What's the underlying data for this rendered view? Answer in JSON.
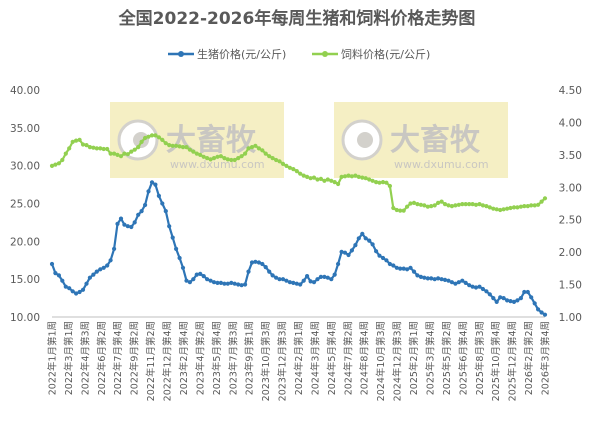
{
  "chart_data": {
    "type": "line",
    "title": "全国2022-2026年每周生猪和饲料价格走势图",
    "legend_position": "top",
    "grid": false,
    "y_left": {
      "ticks": [
        "40.00",
        "35.00",
        "30.00",
        "25.00",
        "20.00",
        "15.00",
        "10.00"
      ],
      "range": [
        10,
        40
      ]
    },
    "y_right": {
      "ticks": [
        "4.50",
        "4.00",
        "3.50",
        "3.00",
        "2.50",
        "2.00",
        "1.50",
        "1.00"
      ],
      "range": [
        1.0,
        4.5
      ]
    },
    "x_ticks": [
      "2022年1月第1周",
      "2022年3月第1周",
      "2022年4月第3周",
      "2022年6月第2周",
      "2022年7月第4周",
      "2022年9月第2周",
      "2022年11月第2周",
      "2022年12月第4周",
      "2023年2月第4周",
      "2023年4月第2周",
      "2023年5月第4周",
      "2023年7月第3周",
      "2023年9月第1周",
      "2023年10月第3周",
      "2023年12月第3周",
      "2024年2月第1周",
      "2024年3月第4周",
      "2024年5月第4周",
      "2024年7月第2周",
      "2024年8月第4周",
      "2024年10月第3周",
      "2024年12月第3周",
      "2025年2月第1周",
      "2025年3月第4周",
      "2025年5月第2周",
      "2025年6月第4周",
      "2025年8月第3周",
      "2025年10月第4周",
      "2025年12月第4周",
      "2026年2月第2周",
      "2026年3月第4周"
    ],
    "series": [
      {
        "name": "生猪价格(元/公斤)",
        "axis": "left",
        "color": "#2e75b6",
        "points": [
          [
            0,
            17.0
          ],
          [
            1,
            15.8
          ],
          [
            2,
            15.5
          ],
          [
            3,
            14.8
          ],
          [
            4,
            14.0
          ],
          [
            5,
            13.8
          ],
          [
            6,
            13.4
          ],
          [
            7,
            13.1
          ],
          [
            8,
            13.3
          ],
          [
            9,
            13.6
          ],
          [
            10,
            14.4
          ],
          [
            11,
            15.2
          ],
          [
            12,
            15.6
          ],
          [
            13,
            16.0
          ],
          [
            14,
            16.3
          ],
          [
            15,
            16.5
          ],
          [
            16,
            16.8
          ],
          [
            17,
            17.5
          ],
          [
            18,
            19.0
          ],
          [
            19,
            22.3
          ],
          [
            20,
            23.0
          ],
          [
            21,
            22.2
          ],
          [
            22,
            22.0
          ],
          [
            23,
            21.9
          ],
          [
            24,
            22.5
          ],
          [
            25,
            23.5
          ],
          [
            26,
            24.0
          ],
          [
            27,
            24.8
          ],
          [
            28,
            26.6
          ],
          [
            29,
            27.8
          ],
          [
            30,
            27.5
          ],
          [
            31,
            26.0
          ],
          [
            32,
            25.0
          ],
          [
            33,
            24.0
          ],
          [
            34,
            22.0
          ],
          [
            35,
            20.5
          ],
          [
            36,
            19.0
          ],
          [
            37,
            17.8
          ],
          [
            38,
            16.5
          ],
          [
            39,
            14.8
          ],
          [
            40,
            14.6
          ],
          [
            41,
            15.0
          ],
          [
            42,
            15.6
          ],
          [
            43,
            15.7
          ],
          [
            44,
            15.4
          ],
          [
            45,
            15.0
          ],
          [
            46,
            14.8
          ],
          [
            47,
            14.6
          ],
          [
            48,
            14.5
          ],
          [
            49,
            14.5
          ],
          [
            50,
            14.4
          ],
          [
            51,
            14.4
          ],
          [
            52,
            14.5
          ],
          [
            53,
            14.4
          ],
          [
            54,
            14.3
          ],
          [
            55,
            14.2
          ],
          [
            56,
            14.3
          ],
          [
            57,
            16.0
          ],
          [
            58,
            17.2
          ],
          [
            59,
            17.3
          ],
          [
            60,
            17.2
          ],
          [
            61,
            17.0
          ],
          [
            62,
            16.6
          ],
          [
            63,
            16.0
          ],
          [
            64,
            15.5
          ],
          [
            65,
            15.2
          ],
          [
            66,
            15.0
          ],
          [
            67,
            15.0
          ],
          [
            68,
            14.8
          ],
          [
            69,
            14.6
          ],
          [
            70,
            14.5
          ],
          [
            71,
            14.4
          ],
          [
            72,
            14.3
          ],
          [
            73,
            14.8
          ],
          [
            74,
            15.4
          ],
          [
            75,
            14.7
          ],
          [
            76,
            14.6
          ],
          [
            77,
            15.0
          ],
          [
            78,
            15.3
          ],
          [
            79,
            15.3
          ],
          [
            80,
            15.2
          ],
          [
            81,
            15.0
          ],
          [
            82,
            15.6
          ],
          [
            83,
            17.0
          ],
          [
            84,
            18.6
          ],
          [
            85,
            18.5
          ],
          [
            86,
            18.2
          ],
          [
            87,
            18.8
          ],
          [
            88,
            19.5
          ],
          [
            89,
            20.4
          ],
          [
            90,
            21.0
          ],
          [
            91,
            20.4
          ],
          [
            92,
            20.1
          ],
          [
            93,
            19.6
          ],
          [
            94,
            18.7
          ],
          [
            95,
            18.1
          ],
          [
            96,
            17.8
          ],
          [
            97,
            17.5
          ],
          [
            98,
            17.0
          ],
          [
            99,
            16.8
          ],
          [
            100,
            16.5
          ],
          [
            101,
            16.4
          ],
          [
            102,
            16.4
          ],
          [
            103,
            16.3
          ],
          [
            104,
            16.5
          ],
          [
            105,
            16.0
          ],
          [
            106,
            15.5
          ],
          [
            107,
            15.3
          ],
          [
            108,
            15.2
          ],
          [
            109,
            15.1
          ],
          [
            110,
            15.1
          ],
          [
            111,
            15.0
          ],
          [
            112,
            15.1
          ],
          [
            113,
            15.0
          ],
          [
            114,
            14.9
          ],
          [
            115,
            14.8
          ],
          [
            116,
            14.6
          ],
          [
            117,
            14.4
          ],
          [
            118,
            14.6
          ],
          [
            119,
            14.8
          ],
          [
            120,
            14.5
          ],
          [
            121,
            14.2
          ],
          [
            122,
            14.0
          ],
          [
            123,
            13.9
          ],
          [
            124,
            14.0
          ],
          [
            125,
            13.7
          ],
          [
            126,
            13.4
          ],
          [
            127,
            13.0
          ],
          [
            128,
            12.5
          ],
          [
            129,
            12.0
          ],
          [
            130,
            12.6
          ],
          [
            131,
            12.5
          ],
          [
            132,
            12.2
          ],
          [
            133,
            12.1
          ],
          [
            134,
            12.0
          ],
          [
            135,
            12.2
          ],
          [
            136,
            12.5
          ],
          [
            137,
            13.3
          ],
          [
            138,
            13.3
          ],
          [
            139,
            12.6
          ],
          [
            140,
            11.8
          ],
          [
            141,
            11.0
          ],
          [
            142,
            10.6
          ],
          [
            143,
            10.3
          ]
        ]
      },
      {
        "name": "饲料价格(元/公斤)",
        "axis": "right",
        "color": "#92d050",
        "points": [
          [
            0,
            3.33
          ],
          [
            1,
            3.35
          ],
          [
            2,
            3.37
          ],
          [
            3,
            3.42
          ],
          [
            4,
            3.52
          ],
          [
            5,
            3.6
          ],
          [
            6,
            3.7
          ],
          [
            7,
            3.72
          ],
          [
            8,
            3.73
          ],
          [
            9,
            3.66
          ],
          [
            10,
            3.65
          ],
          [
            11,
            3.62
          ],
          [
            12,
            3.61
          ],
          [
            13,
            3.6
          ],
          [
            14,
            3.6
          ],
          [
            15,
            3.59
          ],
          [
            16,
            3.59
          ],
          [
            17,
            3.52
          ],
          [
            18,
            3.52
          ],
          [
            19,
            3.5
          ],
          [
            20,
            3.48
          ],
          [
            21,
            3.52
          ],
          [
            22,
            3.51
          ],
          [
            23,
            3.55
          ],
          [
            24,
            3.58
          ],
          [
            25,
            3.62
          ],
          [
            26,
            3.7
          ],
          [
            27,
            3.76
          ],
          [
            28,
            3.78
          ],
          [
            29,
            3.8
          ],
          [
            30,
            3.8
          ],
          [
            31,
            3.77
          ],
          [
            32,
            3.73
          ],
          [
            33,
            3.68
          ],
          [
            34,
            3.65
          ],
          [
            35,
            3.64
          ],
          [
            36,
            3.64
          ],
          [
            37,
            3.63
          ],
          [
            38,
            3.62
          ],
          [
            39,
            3.62
          ],
          [
            40,
            3.58
          ],
          [
            41,
            3.55
          ],
          [
            42,
            3.52
          ],
          [
            43,
            3.5
          ],
          [
            44,
            3.47
          ],
          [
            45,
            3.45
          ],
          [
            46,
            3.43
          ],
          [
            47,
            3.45
          ],
          [
            48,
            3.47
          ],
          [
            49,
            3.48
          ],
          [
            50,
            3.45
          ],
          [
            51,
            3.43
          ],
          [
            52,
            3.42
          ],
          [
            53,
            3.42
          ],
          [
            54,
            3.45
          ],
          [
            55,
            3.48
          ],
          [
            56,
            3.52
          ],
          [
            57,
            3.6
          ],
          [
            58,
            3.62
          ],
          [
            59,
            3.64
          ],
          [
            60,
            3.6
          ],
          [
            61,
            3.57
          ],
          [
            62,
            3.52
          ],
          [
            63,
            3.48
          ],
          [
            64,
            3.45
          ],
          [
            65,
            3.42
          ],
          [
            66,
            3.4
          ],
          [
            67,
            3.36
          ],
          [
            68,
            3.33
          ],
          [
            69,
            3.3
          ],
          [
            70,
            3.28
          ],
          [
            71,
            3.25
          ],
          [
            72,
            3.21
          ],
          [
            73,
            3.18
          ],
          [
            74,
            3.16
          ],
          [
            75,
            3.14
          ],
          [
            76,
            3.15
          ],
          [
            77,
            3.12
          ],
          [
            78,
            3.13
          ],
          [
            79,
            3.1
          ],
          [
            80,
            3.12
          ],
          [
            81,
            3.1
          ],
          [
            82,
            3.08
          ],
          [
            83,
            3.05
          ],
          [
            84,
            3.16
          ],
          [
            85,
            3.17
          ],
          [
            86,
            3.18
          ],
          [
            87,
            3.17
          ],
          [
            88,
            3.18
          ],
          [
            89,
            3.16
          ],
          [
            90,
            3.15
          ],
          [
            91,
            3.14
          ],
          [
            92,
            3.12
          ],
          [
            93,
            3.1
          ],
          [
            94,
            3.08
          ],
          [
            95,
            3.07
          ],
          [
            96,
            3.08
          ],
          [
            97,
            3.07
          ],
          [
            98,
            3.02
          ],
          [
            99,
            2.68
          ],
          [
            100,
            2.65
          ],
          [
            101,
            2.64
          ],
          [
            102,
            2.64
          ],
          [
            103,
            2.7
          ],
          [
            104,
            2.75
          ],
          [
            105,
            2.76
          ],
          [
            106,
            2.74
          ],
          [
            107,
            2.73
          ],
          [
            108,
            2.72
          ],
          [
            109,
            2.7
          ],
          [
            110,
            2.71
          ],
          [
            111,
            2.72
          ],
          [
            112,
            2.76
          ],
          [
            113,
            2.78
          ],
          [
            114,
            2.74
          ],
          [
            115,
            2.72
          ],
          [
            116,
            2.71
          ],
          [
            117,
            2.72
          ],
          [
            118,
            2.73
          ],
          [
            119,
            2.74
          ],
          [
            120,
            2.74
          ],
          [
            121,
            2.74
          ],
          [
            122,
            2.74
          ],
          [
            123,
            2.73
          ],
          [
            124,
            2.74
          ],
          [
            125,
            2.72
          ],
          [
            126,
            2.71
          ],
          [
            127,
            2.69
          ],
          [
            128,
            2.67
          ],
          [
            129,
            2.66
          ],
          [
            130,
            2.65
          ],
          [
            131,
            2.66
          ],
          [
            132,
            2.67
          ],
          [
            133,
            2.68
          ],
          [
            134,
            2.69
          ],
          [
            135,
            2.69
          ],
          [
            136,
            2.7
          ],
          [
            137,
            2.71
          ],
          [
            138,
            2.71
          ],
          [
            139,
            2.72
          ],
          [
            140,
            2.72
          ],
          [
            141,
            2.73
          ],
          [
            142,
            2.78
          ],
          [
            143,
            2.83
          ]
        ]
      }
    ],
    "watermark": {
      "text": "大畜牧",
      "sub": "www.dxumu.com"
    }
  }
}
